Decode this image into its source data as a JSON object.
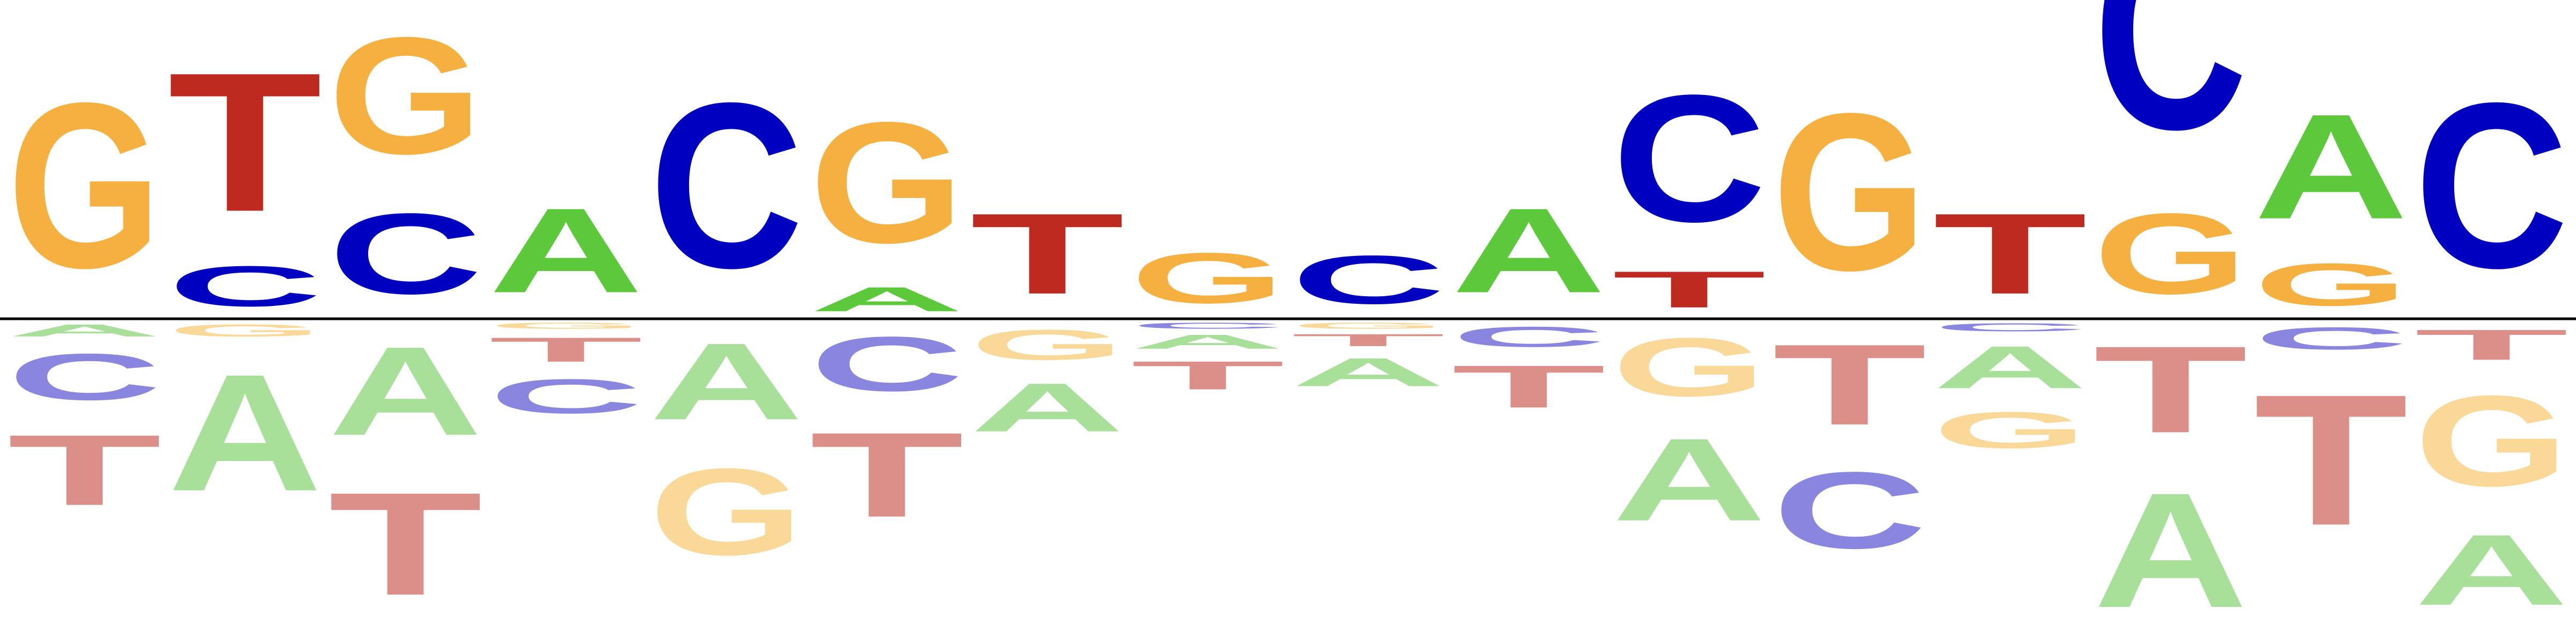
{
  "chart_data": {
    "type": "sequence-logo",
    "title": "",
    "xlabel": "",
    "ylabel": "",
    "ylim": [
      -1.0,
      1.0
    ],
    "baseline": true,
    "alphabet": [
      "A",
      "C",
      "G",
      "T"
    ],
    "colors": {
      "A": "#5cc93a",
      "C": "#0000c0",
      "G": "#f5b040",
      "T": "#bf2a20"
    },
    "negative_colors": {
      "A": "#a8e09a",
      "C": "#8a86e0",
      "G": "#f9d898",
      "T": "#dc8e88"
    },
    "positions": [
      {
        "above": [
          [
            "G",
            0.82
          ]
        ],
        "below": [
          [
            "A",
            0.06
          ],
          [
            "C",
            0.23
          ],
          [
            "T",
            0.35
          ]
        ]
      },
      {
        "above": [
          [
            "C",
            0.2
          ],
          [
            "T",
            0.69
          ]
        ],
        "below": [
          [
            "G",
            0.06
          ],
          [
            "A",
            0.58
          ]
        ]
      },
      {
        "above": [
          [
            "C",
            0.4
          ],
          [
            "G",
            0.58
          ]
        ],
        "below": [
          [
            "A",
            0.44
          ],
          [
            "T",
            0.51
          ]
        ]
      },
      {
        "above": [
          [
            "A",
            0.42
          ]
        ],
        "below": [
          [
            "G",
            0.03
          ],
          [
            "T",
            0.12
          ],
          [
            "C",
            0.17
          ]
        ]
      },
      {
        "above": [
          [
            "C",
            0.82
          ]
        ],
        "below": [
          [
            "A",
            0.38
          ],
          [
            "G",
            0.43
          ]
        ]
      },
      {
        "above": [
          [
            "A",
            0.12
          ],
          [
            "G",
            0.6
          ]
        ],
        "below": [
          [
            "C",
            0.27
          ],
          [
            "T",
            0.42
          ]
        ]
      },
      {
        "above": [
          [
            "T",
            0.4
          ]
        ],
        "below": [
          [
            "G",
            0.15
          ],
          [
            "A",
            0.24
          ]
        ]
      },
      {
        "above": [
          [
            "G",
            0.25
          ]
        ],
        "below": [
          [
            "C",
            0.03
          ],
          [
            "A",
            0.07
          ],
          [
            "T",
            0.14
          ]
        ]
      },
      {
        "above": [
          [
            "C",
            0.24
          ]
        ],
        "below": [
          [
            "G",
            0.03
          ],
          [
            "T",
            0.06
          ],
          [
            "A",
            0.14
          ]
        ]
      },
      {
        "above": [
          [
            "A",
            0.42
          ]
        ],
        "below": [
          [
            "C",
            0.1
          ],
          [
            "T",
            0.21
          ]
        ]
      },
      {
        "above": [
          [
            "T",
            0.18
          ],
          [
            "C",
            0.63
          ]
        ],
        "below": [
          [
            "G",
            0.29
          ],
          [
            "A",
            0.41
          ]
        ]
      },
      {
        "above": [
          [
            "G",
            0.78
          ]
        ],
        "below": [
          [
            "T",
            0.4
          ],
          [
            "C",
            0.38
          ]
        ]
      },
      {
        "above": [
          [
            "T",
            0.4
          ]
        ],
        "below": [
          [
            "C",
            0.04
          ],
          [
            "A",
            0.21
          ],
          [
            "G",
            0.18
          ]
        ]
      },
      {
        "above": [
          [
            "G",
            0.4
          ],
          [
            "C",
            0.98
          ]
        ],
        "below": [
          [
            "T",
            0.43
          ],
          [
            "A",
            0.57
          ]
        ]
      },
      {
        "above": [
          [
            "G",
            0.21
          ],
          [
            "A",
            0.52
          ]
        ],
        "below": [
          [
            "C",
            0.11
          ],
          [
            "T",
            0.65
          ]
        ]
      },
      {
        "above": [
          [
            "C",
            0.82
          ]
        ],
        "below": [
          [
            "T",
            0.15
          ],
          [
            "G",
            0.45
          ],
          [
            "A",
            0.35
          ]
        ]
      }
    ]
  }
}
